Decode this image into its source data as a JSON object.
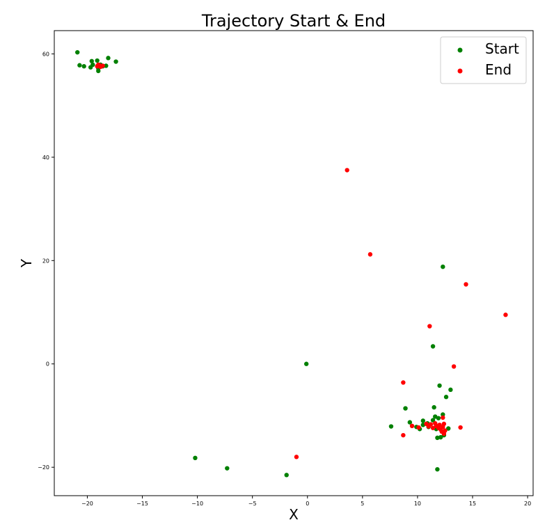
{
  "chart_data": {
    "type": "scatter",
    "title": "Trajectory Start & End",
    "xlabel": "X",
    "ylabel": "Y",
    "xlim": [
      -23,
      20.5
    ],
    "ylim": [
      -25.5,
      64.5
    ],
    "xticks": [
      -20,
      -15,
      -10,
      -5,
      0,
      5,
      10,
      15,
      20
    ],
    "yticks": [
      -20,
      0,
      20,
      40,
      60
    ],
    "grid": false,
    "legend_position": "top-right",
    "series": [
      {
        "name": "Start",
        "color": "#008000",
        "points": [
          [
            -20.9,
            60.3
          ],
          [
            -20.7,
            57.8
          ],
          [
            -20.3,
            57.6
          ],
          [
            -19.6,
            58.6
          ],
          [
            -19.7,
            57.4
          ],
          [
            -19.5,
            57.9
          ],
          [
            -19.1,
            58.7
          ],
          [
            -19.0,
            57.2
          ],
          [
            -19.0,
            56.7
          ],
          [
            -18.8,
            57.9
          ],
          [
            -18.6,
            57.6
          ],
          [
            -18.3,
            57.7
          ],
          [
            -18.1,
            59.2
          ],
          [
            -17.4,
            58.5
          ],
          [
            -10.2,
            -18.2
          ],
          [
            -7.3,
            -20.2
          ],
          [
            -1.9,
            -21.5
          ],
          [
            -0.1,
            0.0
          ],
          [
            7.6,
            -12.1
          ],
          [
            8.9,
            -8.6
          ],
          [
            9.3,
            -11.3
          ],
          [
            9.9,
            -12.2
          ],
          [
            10.2,
            -12.6
          ],
          [
            10.5,
            -11.0
          ],
          [
            10.5,
            -11.8
          ],
          [
            10.9,
            -11.5
          ],
          [
            11.0,
            -12.2
          ],
          [
            11.4,
            -10.9
          ],
          [
            11.5,
            -8.4
          ],
          [
            11.6,
            -10.2
          ],
          [
            11.7,
            -12.6
          ],
          [
            11.8,
            -14.3
          ],
          [
            11.9,
            -10.5
          ],
          [
            12.0,
            -4.2
          ],
          [
            12.1,
            -14.2
          ],
          [
            12.3,
            -9.8
          ],
          [
            12.3,
            18.8
          ],
          [
            11.4,
            3.4
          ],
          [
            11.8,
            -20.4
          ],
          [
            12.4,
            -13.8
          ],
          [
            12.6,
            -6.4
          ],
          [
            12.8,
            -12.5
          ],
          [
            13.0,
            -5.0
          ]
        ]
      },
      {
        "name": "End",
        "color": "#ff0000",
        "points": [
          [
            -19.1,
            57.6
          ],
          [
            -18.9,
            57.8
          ],
          [
            -18.8,
            57.5
          ],
          [
            -18.6,
            57.7
          ],
          [
            -19.0,
            57.9
          ],
          [
            -1.0,
            -18.0
          ],
          [
            3.6,
            37.5
          ],
          [
            5.7,
            21.2
          ],
          [
            8.7,
            -3.6
          ],
          [
            8.7,
            -13.8
          ],
          [
            9.5,
            -12.0
          ],
          [
            10.1,
            -12.3
          ],
          [
            10.8,
            -11.6
          ],
          [
            11.0,
            -12.1
          ],
          [
            11.2,
            -11.7
          ],
          [
            11.1,
            7.3
          ],
          [
            11.4,
            -12.4
          ],
          [
            11.6,
            -11.5
          ],
          [
            11.7,
            -12.0
          ],
          [
            11.9,
            -12.4
          ],
          [
            12.0,
            -11.8
          ],
          [
            12.1,
            -12.7
          ],
          [
            12.2,
            -13.1
          ],
          [
            12.3,
            -12.2
          ],
          [
            12.3,
            -10.4
          ],
          [
            12.4,
            -13.5
          ],
          [
            12.5,
            -12.9
          ],
          [
            12.4,
            -11.6
          ],
          [
            13.3,
            -0.5
          ],
          [
            13.9,
            -12.3
          ],
          [
            14.4,
            15.4
          ],
          [
            18.0,
            9.5
          ]
        ]
      }
    ]
  }
}
